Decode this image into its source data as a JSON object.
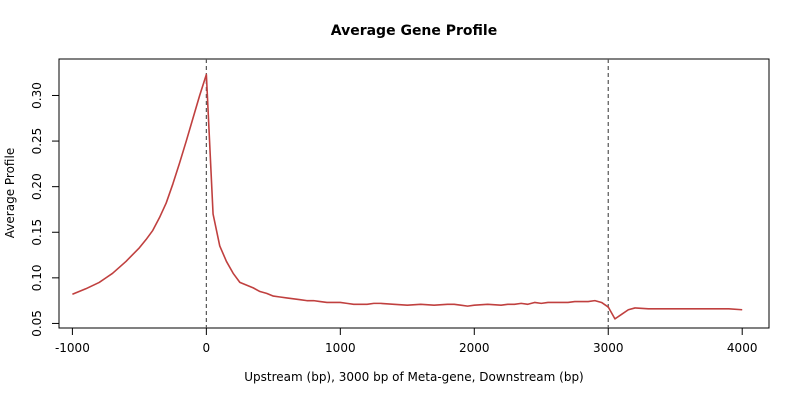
{
  "chart_data": {
    "type": "line",
    "title": "Average Gene Profile",
    "xlabel": "Upstream (bp), 3000 bp of Meta-gene, Downstream (bp)",
    "ylabel": "Average Profile",
    "xlim": [
      -1100,
      4200
    ],
    "ylim": [
      0.045,
      0.34
    ],
    "x_ticks": [
      -1000,
      0,
      1000,
      2000,
      3000,
      4000
    ],
    "x_tick_labels": [
      "-1000",
      "0",
      "1000",
      "2000",
      "3000",
      "4000"
    ],
    "y_ticks": [
      0.05,
      0.1,
      0.15,
      0.2,
      0.25,
      0.3
    ],
    "y_tick_labels": [
      "0.05",
      "0.10",
      "0.15",
      "0.20",
      "0.25",
      "0.30"
    ],
    "reference_lines_x": [
      0,
      3000
    ],
    "grid": false,
    "series": [
      {
        "color": "#c0403f",
        "x": [
          -1000,
          -900,
          -800,
          -750,
          -700,
          -600,
          -500,
          -450,
          -400,
          -350,
          -300,
          -250,
          -200,
          -150,
          -100,
          -50,
          0,
          50,
          100,
          150,
          200,
          250,
          300,
          350,
          400,
          450,
          500,
          550,
          600,
          650,
          700,
          750,
          800,
          850,
          900,
          950,
          1000,
          1050,
          1100,
          1150,
          1200,
          1250,
          1300,
          1400,
          1500,
          1600,
          1700,
          1800,
          1850,
          1900,
          1950,
          2000,
          2100,
          2200,
          2250,
          2300,
          2350,
          2400,
          2450,
          2500,
          2550,
          2600,
          2700,
          2750,
          2800,
          2850,
          2900,
          2950,
          3000,
          3050,
          3100,
          3150,
          3200,
          3300,
          3400,
          3500,
          3600,
          3700,
          3800,
          3900,
          4000
        ],
        "y": [
          0.082,
          0.088,
          0.095,
          0.1,
          0.105,
          0.118,
          0.133,
          0.142,
          0.152,
          0.166,
          0.182,
          0.203,
          0.226,
          0.25,
          0.275,
          0.3,
          0.323,
          0.17,
          0.135,
          0.118,
          0.105,
          0.095,
          0.092,
          0.089,
          0.085,
          0.083,
          0.08,
          0.079,
          0.078,
          0.077,
          0.076,
          0.075,
          0.075,
          0.074,
          0.073,
          0.073,
          0.073,
          0.072,
          0.071,
          0.071,
          0.071,
          0.072,
          0.072,
          0.071,
          0.07,
          0.071,
          0.07,
          0.071,
          0.071,
          0.07,
          0.069,
          0.07,
          0.071,
          0.07,
          0.071,
          0.071,
          0.072,
          0.071,
          0.073,
          0.072,
          0.073,
          0.073,
          0.073,
          0.074,
          0.074,
          0.074,
          0.075,
          0.073,
          0.068,
          0.055,
          0.06,
          0.065,
          0.067,
          0.066,
          0.066,
          0.066,
          0.066,
          0.066,
          0.066,
          0.066,
          0.065
        ]
      }
    ]
  }
}
